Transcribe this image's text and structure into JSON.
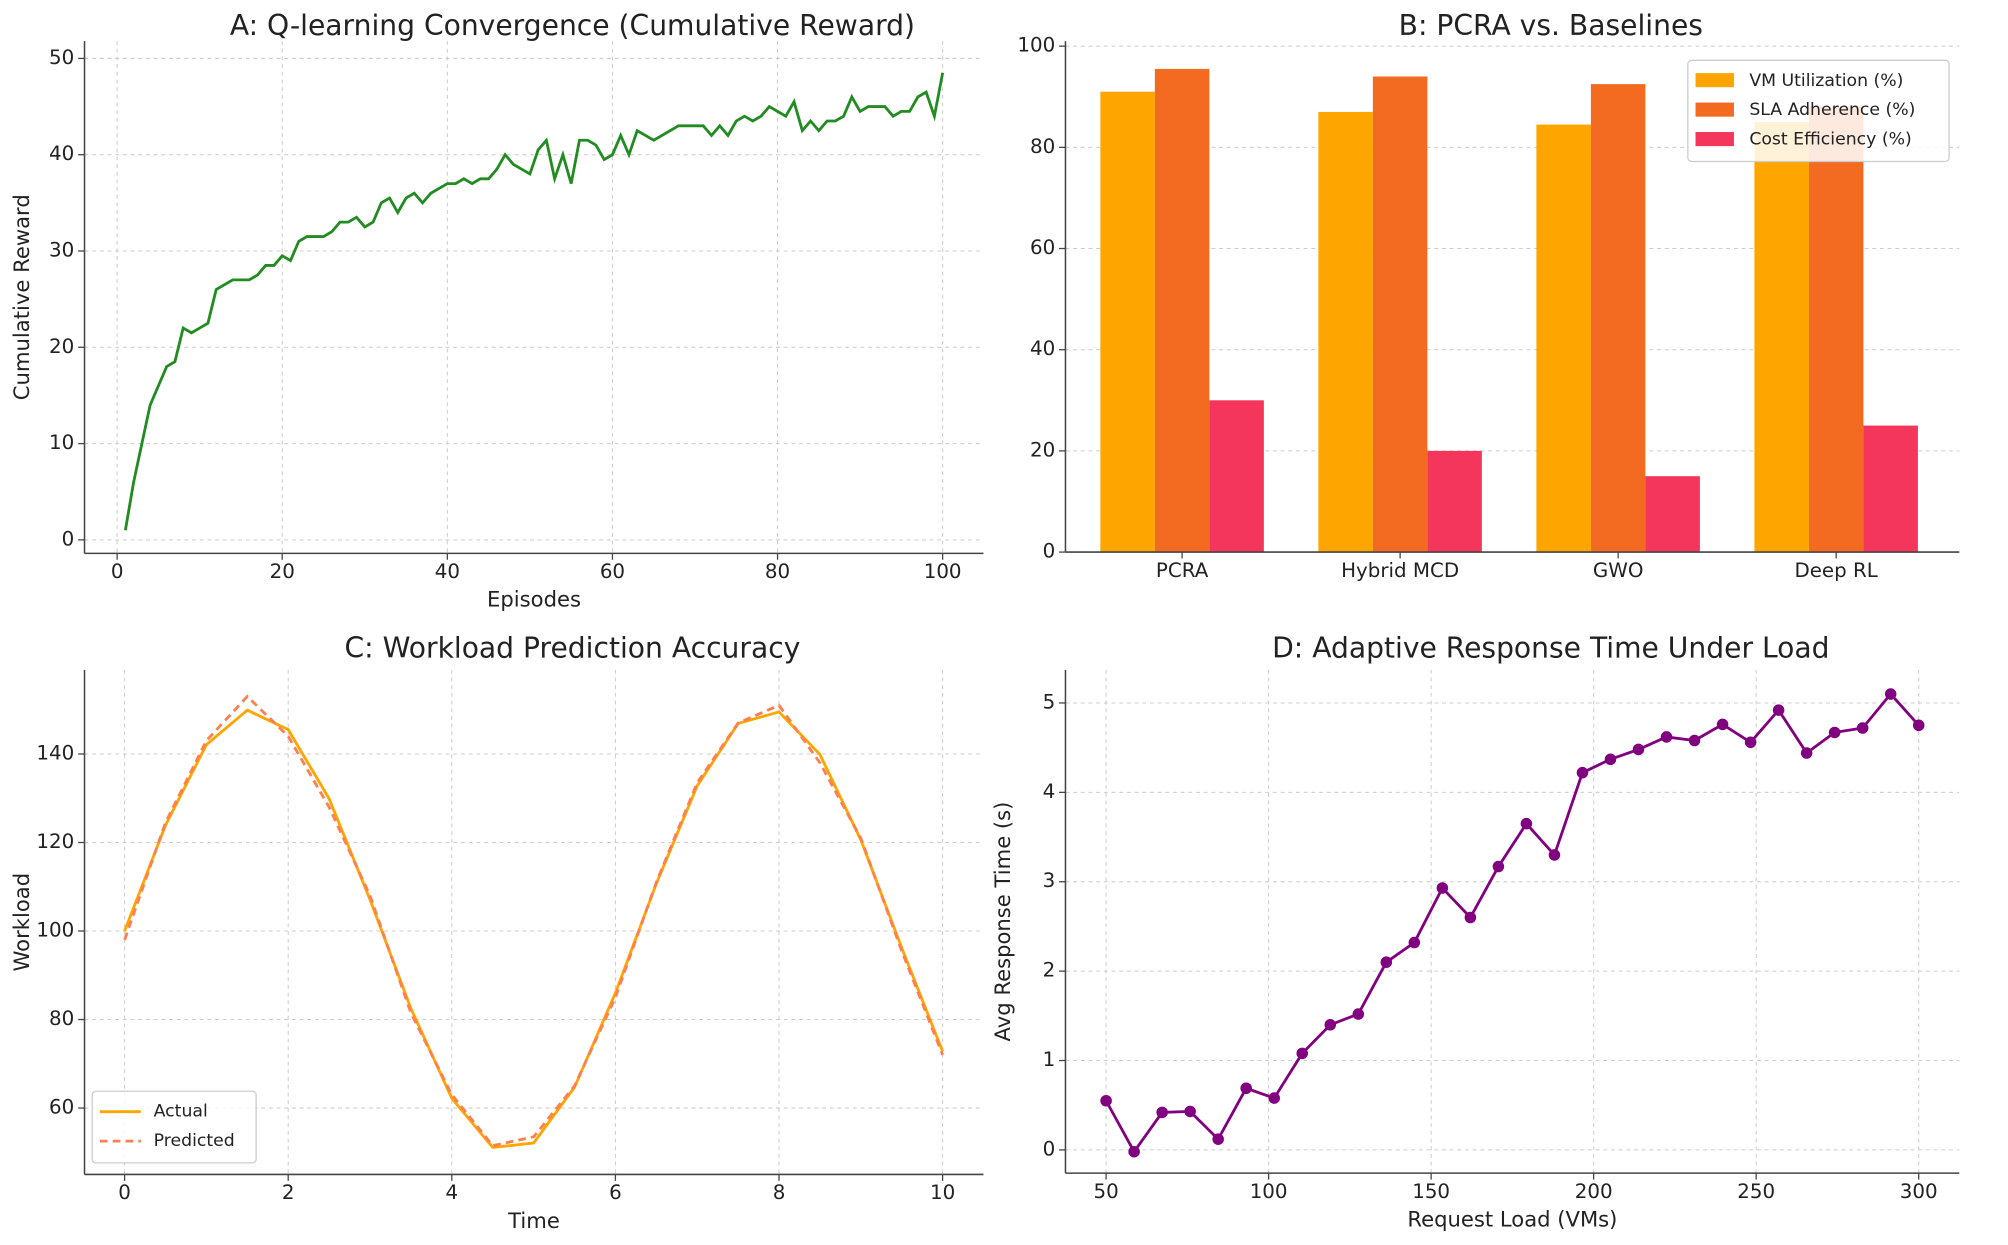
{
  "chart_data": [
    {
      "type": "line",
      "title": "A: Q-learning Convergence (Cumulative Reward)",
      "xlabel": "Episodes",
      "ylabel": "Cumulative Reward",
      "x": [
        1,
        2,
        3,
        4,
        5,
        6,
        7,
        8,
        9,
        10,
        11,
        12,
        13,
        14,
        15,
        16,
        17,
        18,
        19,
        20,
        21,
        22,
        23,
        24,
        25,
        26,
        27,
        28,
        29,
        30,
        31,
        32,
        33,
        34,
        35,
        36,
        37,
        38,
        39,
        40,
        41,
        42,
        43,
        44,
        45,
        46,
        47,
        48,
        49,
        50,
        51,
        52,
        53,
        54,
        55,
        56,
        57,
        58,
        59,
        60,
        61,
        62,
        63,
        64,
        65,
        66,
        67,
        68,
        69,
        70,
        71,
        72,
        73,
        74,
        75,
        76,
        77,
        78,
        79,
        80,
        81,
        82,
        83,
        84,
        85,
        86,
        87,
        88,
        89,
        90,
        91,
        92,
        93,
        94,
        95,
        96,
        97,
        98,
        99,
        100
      ],
      "series": [
        {
          "color": "#228b22",
          "values": [
            1,
            6,
            10,
            14,
            16,
            18,
            18.5,
            22,
            21.5,
            22,
            22.5,
            26,
            26.5,
            27,
            27,
            27,
            27.5,
            28.5,
            28.5,
            29.5,
            29,
            31,
            31.5,
            31.5,
            31.5,
            32,
            33,
            33,
            33.5,
            32.5,
            33,
            35,
            35.5,
            34,
            35.5,
            36,
            35,
            36,
            36.5,
            37,
            37,
            37.5,
            37,
            37.5,
            37.5,
            38.5,
            40,
            39,
            38.5,
            38,
            40.5,
            41.5,
            37.5,
            40,
            37,
            41.5,
            41.5,
            41,
            39.5,
            40,
            42,
            40,
            42.5,
            42,
            41.5,
            42,
            42.5,
            43,
            43,
            43,
            43,
            42,
            43,
            42,
            43.5,
            44,
            43.5,
            44,
            45,
            44.5,
            44,
            45.5,
            42.5,
            43.5,
            42.5,
            43.5,
            43.5,
            44,
            46,
            44.5,
            45,
            45,
            45,
            44,
            44.5,
            44.5,
            46,
            46.5,
            44,
            48.5
          ]
        }
      ],
      "xlim": [
        -3.95,
        104.95
      ],
      "xticks": [
        0,
        20,
        40,
        60,
        80,
        100
      ],
      "ylim": [
        -1.4,
        51.8
      ],
      "yticks": [
        0,
        10,
        20,
        30,
        40,
        50
      ],
      "grid": "both"
    },
    {
      "type": "bar",
      "title": "B: PCRA vs. Baselines",
      "categories": [
        "PCRA",
        "Hybrid MCD",
        "GWO",
        "Deep RL"
      ],
      "series": [
        {
          "name": "VM Utilization (%)",
          "color": "#ffa500",
          "values": [
            91,
            87,
            84.5,
            85
          ]
        },
        {
          "name": "SLA Adherence (%)",
          "color": "#f26b21",
          "values": [
            95.5,
            94,
            92.5,
            88
          ]
        },
        {
          "name": "Cost Efficiency (%)",
          "color": "#f5365c",
          "values": [
            30,
            20,
            15,
            25
          ]
        }
      ],
      "ylim": [
        0,
        101
      ],
      "yticks": [
        0,
        20,
        40,
        60,
        80,
        100
      ],
      "grid": "y",
      "legend": "upper right"
    },
    {
      "type": "line",
      "title": "C: Workload Prediction Accuracy",
      "xlabel": "Time",
      "ylabel": "Workload",
      "x": [
        0,
        0.5,
        1,
        1.5,
        2,
        2.5,
        3,
        3.5,
        4,
        4.5,
        5,
        5.5,
        6,
        6.5,
        7,
        7.5,
        8,
        8.5,
        9,
        9.5,
        10
      ],
      "series": [
        {
          "name": "Actual",
          "color": "#ffa500",
          "linestyle": "solid",
          "values": [
            100,
            123.9,
            142.1,
            149.9,
            145.5,
            129.9,
            107.1,
            82.5,
            62.2,
            51.1,
            52.1,
            64.7,
            86.0,
            110.7,
            132.8,
            146.9,
            149.5,
            139.9,
            120.6,
            96.2,
            72.8
          ]
        },
        {
          "name": "Predicted",
          "color": "#ff7f50",
          "linestyle": "dashed",
          "values": [
            98,
            124.5,
            143,
            153,
            144,
            128,
            108,
            81.5,
            63,
            51.5,
            53.5,
            65,
            85,
            111,
            133.5,
            147,
            151,
            138,
            121,
            95.5,
            72
          ]
        }
      ],
      "xlim": [
        -0.49,
        10.5
      ],
      "xticks": [
        0,
        2,
        4,
        6,
        8,
        10
      ],
      "ylim": [
        45,
        159
      ],
      "yticks": [
        60,
        80,
        100,
        120,
        140
      ],
      "grid": "both",
      "legend": "lower left"
    },
    {
      "type": "line",
      "title": "D: Adaptive Response Time Under Load",
      "xlabel": "Request Load (VMs)",
      "ylabel": "Avg Response Time (s)",
      "x": [
        50,
        58.62,
        67.24,
        75.86,
        84.48,
        93.1,
        101.72,
        110.34,
        118.97,
        127.59,
        136.21,
        144.83,
        153.45,
        162.07,
        170.69,
        179.31,
        187.93,
        196.55,
        205.17,
        213.79,
        222.41,
        231.03,
        239.66,
        248.28,
        256.9,
        265.52,
        274.14,
        282.76,
        291.38,
        300
      ],
      "series": [
        {
          "color": "#800080",
          "marker": "o",
          "values": [
            0.55,
            -0.02,
            0.42,
            0.43,
            0.12,
            0.69,
            0.58,
            1.08,
            1.4,
            1.52,
            2.1,
            2.32,
            2.93,
            2.6,
            3.17,
            3.65,
            3.3,
            4.22,
            4.37,
            4.48,
            4.62,
            4.58,
            4.76,
            4.56,
            4.92,
            4.44,
            4.67,
            4.72,
            5.1,
            4.75
          ]
        }
      ],
      "xlim": [
        37.5,
        312.5
      ],
      "xticks": [
        50,
        100,
        150,
        200,
        250,
        300
      ],
      "ylim": [
        -0.26,
        5.37
      ],
      "yticks": [
        0,
        1,
        2,
        3,
        4,
        5
      ],
      "grid": "both"
    }
  ]
}
